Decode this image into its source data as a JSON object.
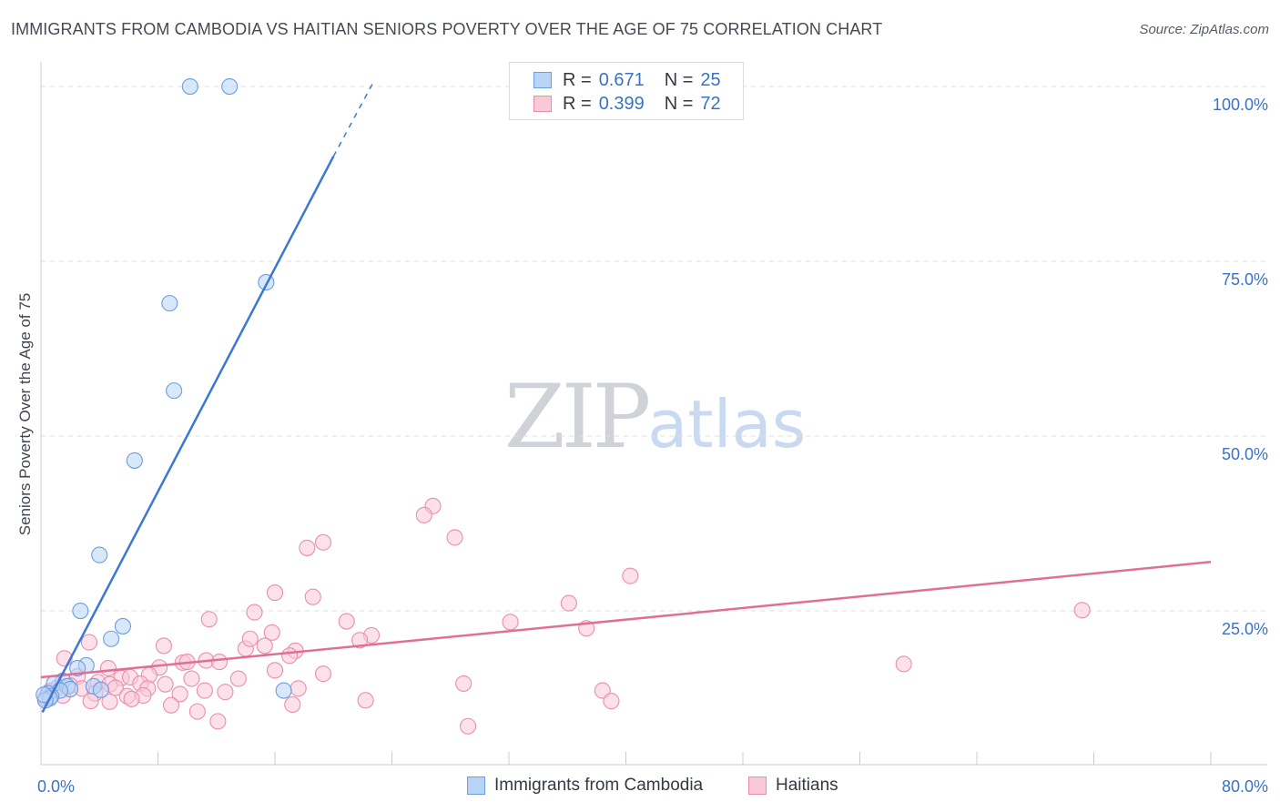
{
  "title": "IMMIGRANTS FROM CAMBODIA VS HAITIAN SENIORS POVERTY OVER THE AGE OF 75 CORRELATION CHART",
  "source": "Source: ZipAtlas.com",
  "watermark": {
    "zip": "ZIP",
    "atlas": "atlas"
  },
  "legend": {
    "rows": [
      {
        "r_label": "R =",
        "r_value": "0.671",
        "n_label": "N =",
        "n_value": "25"
      },
      {
        "r_label": "R =",
        "r_value": "0.399",
        "n_label": "N =",
        "n_value": "72"
      }
    ]
  },
  "colors": {
    "cambodia_fill": "#b8d3f5",
    "cambodia_stroke": "#6a9ee0",
    "cambodia_line": "#3a78d4",
    "haitian_fill": "#f9c9d8",
    "haitian_stroke": "#ea8eac",
    "haitian_line": "#e06f97",
    "axis_tick_label": "#3a72c8",
    "grid": "#dcdfe3"
  },
  "chart_data": {
    "type": "scatter",
    "title": "IMMIGRANTS FROM CAMBODIA VS HAITIAN SENIORS POVERTY OVER THE AGE OF 75 CORRELATION CHART",
    "xlabel": "",
    "ylabel": "Seniors Poverty Over the Age of 75",
    "xlim": [
      0,
      80
    ],
    "ylim": [
      3,
      103
    ],
    "x_tick_labels": [
      {
        "value": 0,
        "label": "0.0%"
      },
      {
        "value": 80,
        "label": "80.0%"
      }
    ],
    "y_tick_labels": [
      {
        "value": 25,
        "label": "25.0%"
      },
      {
        "value": 50,
        "label": "50.0%"
      },
      {
        "value": 75,
        "label": "75.0%"
      },
      {
        "value": 100,
        "label": "100.0%"
      }
    ],
    "series": [
      {
        "name": "Immigrants from Cambodia",
        "r": 0.671,
        "n": 25,
        "trend": {
          "x0": 0.1,
          "y0": 10.5,
          "x1": 20.0,
          "y1": 90.0,
          "dash_x1": 22.7,
          "dash_y1": 100.5
        },
        "points": [
          [
            10.2,
            100.0
          ],
          [
            12.9,
            100.0
          ],
          [
            15.4,
            72.0
          ],
          [
            8.8,
            69.0
          ],
          [
            9.1,
            56.5
          ],
          [
            6.4,
            46.5
          ],
          [
            4.0,
            33.0
          ],
          [
            2.7,
            25.0
          ],
          [
            5.6,
            22.8
          ],
          [
            4.8,
            21.0
          ],
          [
            3.1,
            17.2
          ],
          [
            2.5,
            16.8
          ],
          [
            1.5,
            15.0
          ],
          [
            0.9,
            14.6
          ],
          [
            1.8,
            14.2
          ],
          [
            2.0,
            13.8
          ],
          [
            1.3,
            13.6
          ],
          [
            3.6,
            14.2
          ],
          [
            4.1,
            13.7
          ],
          [
            0.5,
            13.2
          ],
          [
            0.7,
            12.8
          ],
          [
            0.6,
            12.5
          ],
          [
            0.3,
            12.2
          ],
          [
            16.6,
            13.6
          ],
          [
            0.2,
            13.0
          ]
        ]
      },
      {
        "name": "Haitians",
        "r": 0.399,
        "n": 72,
        "trend": {
          "x0": 0.0,
          "y0": 15.5,
          "x1": 80.0,
          "y1": 32.0
        },
        "points": [
          [
            26.8,
            40.0
          ],
          [
            26.2,
            38.7
          ],
          [
            28.3,
            35.5
          ],
          [
            19.3,
            34.8
          ],
          [
            18.2,
            34.0
          ],
          [
            40.3,
            30.0
          ],
          [
            71.2,
            25.1
          ],
          [
            36.1,
            26.1
          ],
          [
            16.0,
            27.6
          ],
          [
            18.6,
            27.0
          ],
          [
            14.6,
            24.8
          ],
          [
            11.5,
            23.8
          ],
          [
            20.9,
            23.5
          ],
          [
            32.1,
            23.4
          ],
          [
            37.3,
            22.5
          ],
          [
            22.6,
            21.5
          ],
          [
            3.3,
            20.5
          ],
          [
            8.4,
            20.0
          ],
          [
            15.3,
            20.0
          ],
          [
            14.0,
            19.6
          ],
          [
            17.4,
            19.3
          ],
          [
            21.8,
            20.8
          ],
          [
            14.3,
            21.0
          ],
          [
            15.8,
            21.9
          ],
          [
            17.0,
            18.6
          ],
          [
            1.6,
            18.2
          ],
          [
            9.7,
            17.6
          ],
          [
            10.0,
            17.7
          ],
          [
            11.3,
            17.9
          ],
          [
            12.2,
            17.7
          ],
          [
            8.1,
            16.9
          ],
          [
            4.6,
            16.8
          ],
          [
            59.0,
            17.4
          ],
          [
            19.3,
            16.0
          ],
          [
            16.0,
            16.5
          ],
          [
            2.5,
            15.6
          ],
          [
            5.5,
            15.4
          ],
          [
            6.1,
            15.5
          ],
          [
            7.4,
            15.8
          ],
          [
            10.3,
            15.3
          ],
          [
            13.5,
            15.3
          ],
          [
            3.9,
            14.8
          ],
          [
            4.7,
            14.5
          ],
          [
            6.8,
            14.6
          ],
          [
            8.5,
            14.5
          ],
          [
            2.0,
            14.3
          ],
          [
            28.9,
            14.6
          ],
          [
            1.1,
            14.0
          ],
          [
            2.8,
            13.9
          ],
          [
            5.1,
            14.0
          ],
          [
            7.3,
            13.9
          ],
          [
            11.2,
            13.6
          ],
          [
            17.6,
            13.9
          ],
          [
            38.4,
            13.6
          ],
          [
            0.6,
            13.5
          ],
          [
            3.7,
            13.2
          ],
          [
            5.9,
            12.8
          ],
          [
            7.0,
            12.9
          ],
          [
            9.5,
            13.1
          ],
          [
            12.6,
            13.4
          ],
          [
            1.5,
            12.9
          ],
          [
            0.3,
            12.5
          ],
          [
            3.4,
            12.1
          ],
          [
            4.7,
            12.0
          ],
          [
            6.2,
            12.4
          ],
          [
            22.2,
            12.2
          ],
          [
            39.0,
            12.1
          ],
          [
            8.9,
            11.5
          ],
          [
            17.2,
            11.6
          ],
          [
            10.7,
            10.6
          ],
          [
            12.1,
            9.2
          ],
          [
            29.2,
            8.5
          ]
        ]
      }
    ]
  },
  "bottom_legend": [
    {
      "label": "Immigrants from Cambodia"
    },
    {
      "label": "Haitians"
    }
  ]
}
